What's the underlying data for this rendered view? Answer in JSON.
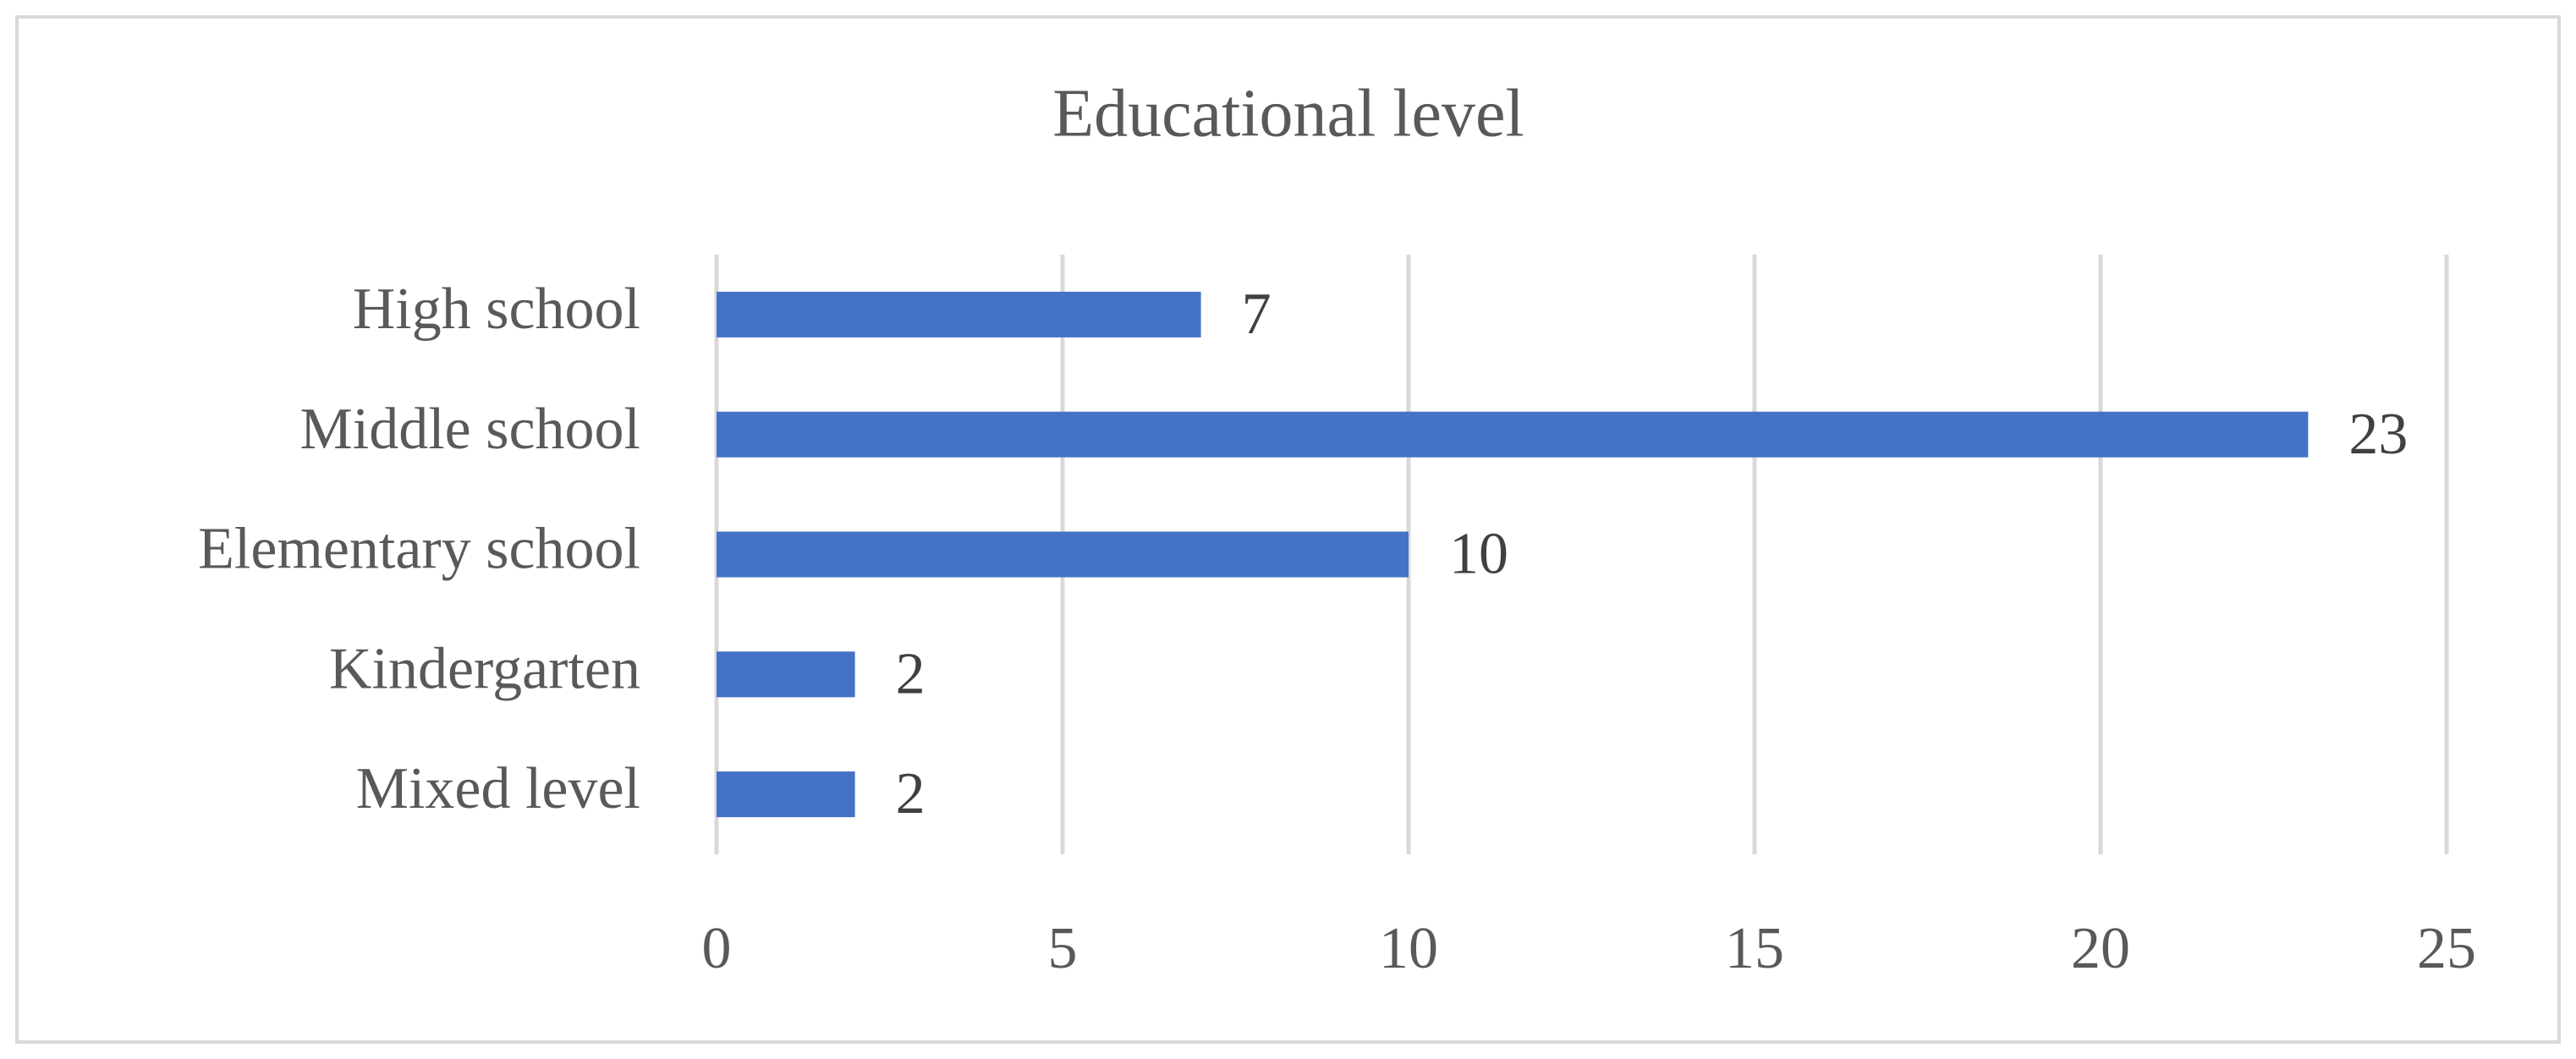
{
  "chart_data": {
    "type": "bar",
    "orientation": "horizontal",
    "title": "Educational level",
    "categories": [
      "High school",
      "Middle school",
      "Elementary school",
      "Kindergarten",
      "Mixed level"
    ],
    "values": [
      7,
      23,
      10,
      2,
      2
    ],
    "color": "#4472c4",
    "xlim": [
      0,
      25
    ],
    "xticks": [
      0,
      5,
      10,
      15,
      20,
      25
    ],
    "grid": true
  }
}
